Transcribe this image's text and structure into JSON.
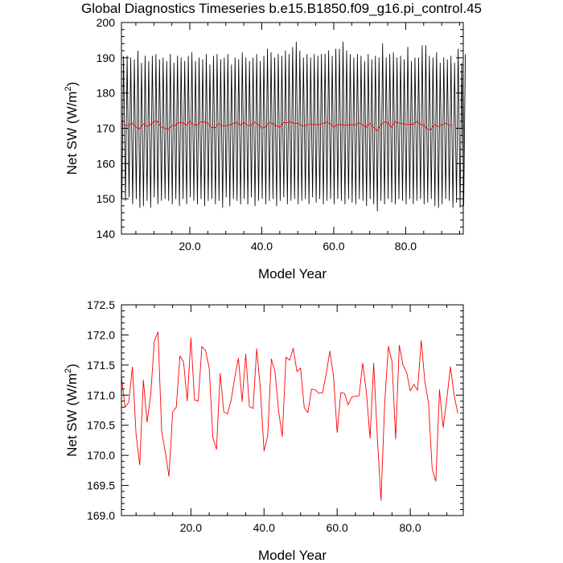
{
  "title": "Global Diagnostics Timeseries b.e15.B1850.f09_g16.pi_control.45",
  "chart_data": [
    {
      "type": "line",
      "xlabel": "Model Year",
      "ylabel": "Net SW (W/m",
      "ylabel_sup": "2",
      "ylabel_suffix": ")",
      "xlim": [
        1,
        96
      ],
      "ylim": [
        140,
        200
      ],
      "xticks": [
        20,
        40,
        60,
        80
      ],
      "xtick_labels": [
        "20.0",
        "40.0",
        "60.0",
        "80.0"
      ],
      "yticks": [
        140,
        150,
        160,
        170,
        180,
        190,
        200
      ],
      "ytick_labels": [
        "140",
        "150",
        "160",
        "170",
        "180",
        "190",
        "200"
      ],
      "series": [
        {
          "color": "#000000",
          "kind": "monthly",
          "monthly_max": [
            190.5,
            190.5,
            190.0,
            189.5,
            192.0,
            188.5,
            190.5,
            189.0,
            190.5,
            191.0,
            189.5,
            190.0,
            189.0,
            191.0,
            188.5,
            190.5,
            190.0,
            189.0,
            190.5,
            191.5,
            189.0,
            190.0,
            189.5,
            191.0,
            188.0,
            190.5,
            191.0,
            189.5,
            190.0,
            191.0,
            188.0,
            190.0,
            189.5,
            191.5,
            190.0,
            189.0,
            190.0,
            191.0,
            189.0,
            190.5,
            192.5,
            191.5,
            190.0,
            191.0,
            190.5,
            192.0,
            191.0,
            193.0,
            194.5,
            192.0,
            190.0,
            191.0,
            190.0,
            191.0,
            190.5,
            191.0,
            191.0,
            192.0,
            190.5,
            192.5,
            192.5,
            194.5,
            192.0,
            191.0,
            190.0,
            191.0,
            190.5,
            189.0,
            191.0,
            189.5,
            190.5,
            190.0,
            194.0,
            190.0,
            191.0,
            191.5,
            190.0,
            190.5,
            189.5,
            193.0,
            189.0,
            190.0,
            190.0,
            193.5,
            193.5,
            190.5,
            190.0,
            191.5,
            188.5,
            190.0,
            189.5,
            190.5,
            188.5,
            192.5,
            188.5,
            191.0
          ],
          "monthly_min": [
            150.0,
            149.5,
            150.5,
            148.5,
            150.0,
            147.5,
            148.0,
            149.5,
            147.5,
            150.5,
            148.5,
            149.5,
            150.0,
            149.5,
            148.5,
            150.0,
            148.0,
            150.0,
            148.5,
            150.5,
            149.5,
            148.5,
            150.0,
            148.0,
            149.5,
            150.0,
            148.5,
            149.5,
            147.5,
            150.5,
            148.0,
            150.0,
            149.5,
            148.5,
            150.0,
            148.5,
            150.5,
            148.0,
            149.5,
            150.0,
            148.5,
            149.5,
            150.0,
            148.0,
            149.5,
            150.5,
            148.5,
            149.5,
            150.0,
            148.5,
            149.5,
            150.0,
            148.5,
            150.5,
            149.0,
            150.0,
            148.5,
            149.5,
            150.0,
            148.5,
            150.0,
            149.5,
            148.5,
            150.0,
            149.0,
            148.5,
            150.0,
            149.5,
            148.0,
            150.0,
            148.5,
            146.5,
            149.5,
            148.5,
            150.0,
            149.0,
            148.5,
            150.0,
            149.5,
            148.5,
            150.0,
            148.5,
            149.5,
            150.0,
            148.5,
            149.0,
            150.0,
            148.0,
            147.5,
            148.5,
            150.0,
            149.5,
            147.5,
            149.0,
            147.5,
            148.0
          ]
        },
        {
          "color": "#ff0000",
          "kind": "annual",
          "values": [
            171.3,
            170.8,
            170.88,
            171.47,
            170.35,
            169.84,
            171.25,
            170.55,
            171.0,
            171.9,
            172.05,
            170.4,
            170.05,
            169.65,
            170.72,
            170.8,
            171.65,
            171.55,
            170.9,
            171.95,
            170.92,
            170.9,
            171.81,
            171.74,
            171.45,
            170.3,
            170.1,
            171.36,
            170.72,
            170.69,
            170.91,
            171.3,
            171.61,
            170.89,
            171.68,
            170.81,
            170.78,
            171.77,
            171.1,
            170.07,
            170.32,
            171.6,
            171.39,
            170.73,
            170.31,
            171.63,
            171.58,
            171.78,
            171.39,
            171.45,
            170.79,
            170.71,
            171.1,
            171.09,
            171.03,
            171.04,
            171.35,
            171.73,
            171.32,
            170.38,
            171.04,
            171.03,
            170.84,
            170.97,
            170.98,
            170.99,
            171.53,
            171.05,
            170.28,
            171.53,
            170.29,
            169.25,
            170.86,
            171.81,
            171.56,
            170.27,
            171.83,
            171.5,
            171.38,
            171.07,
            171.18,
            171.08,
            171.91,
            171.22,
            170.87,
            169.77,
            169.57,
            171.09,
            170.46,
            170.94,
            171.47,
            171.0,
            170.7
          ]
        }
      ]
    },
    {
      "type": "line",
      "xlabel": "Model Year",
      "ylabel": "Net SW (W/m",
      "ylabel_sup": "2",
      "ylabel_suffix": ")",
      "xlim": [
        1,
        94.5
      ],
      "ylim": [
        169.0,
        172.5
      ],
      "xticks": [
        20,
        40,
        60,
        80
      ],
      "xtick_labels": [
        "20.0",
        "40.0",
        "60.0",
        "80.0"
      ],
      "yticks": [
        169.0,
        169.5,
        170.0,
        170.5,
        171.0,
        171.5,
        172.0,
        172.5
      ],
      "ytick_labels": [
        "169.0",
        "169.5",
        "170.0",
        "170.5",
        "171.0",
        "171.5",
        "172.0",
        "172.5"
      ],
      "series": [
        {
          "color": "#ff0000",
          "kind": "annual",
          "values": [
            171.3,
            170.8,
            170.88,
            171.47,
            170.35,
            169.84,
            171.25,
            170.55,
            171.0,
            171.9,
            172.05,
            170.4,
            170.05,
            169.65,
            170.72,
            170.8,
            171.65,
            171.55,
            170.9,
            171.95,
            170.92,
            170.9,
            171.81,
            171.74,
            171.45,
            170.3,
            170.1,
            171.36,
            170.72,
            170.69,
            170.91,
            171.3,
            171.61,
            170.89,
            171.68,
            170.81,
            170.78,
            171.77,
            171.1,
            170.07,
            170.32,
            171.6,
            171.39,
            170.73,
            170.31,
            171.63,
            171.58,
            171.78,
            171.39,
            171.45,
            170.79,
            170.71,
            171.1,
            171.09,
            171.03,
            171.04,
            171.35,
            171.73,
            171.32,
            170.38,
            171.04,
            171.03,
            170.84,
            170.97,
            170.98,
            170.99,
            171.53,
            171.05,
            170.28,
            171.53,
            170.29,
            169.25,
            170.86,
            171.81,
            171.56,
            170.27,
            171.83,
            171.5,
            171.38,
            171.07,
            171.18,
            171.08,
            171.91,
            171.22,
            170.87,
            169.77,
            169.57,
            171.09,
            170.46,
            170.94,
            171.47,
            171.0,
            170.7
          ]
        }
      ]
    }
  ]
}
